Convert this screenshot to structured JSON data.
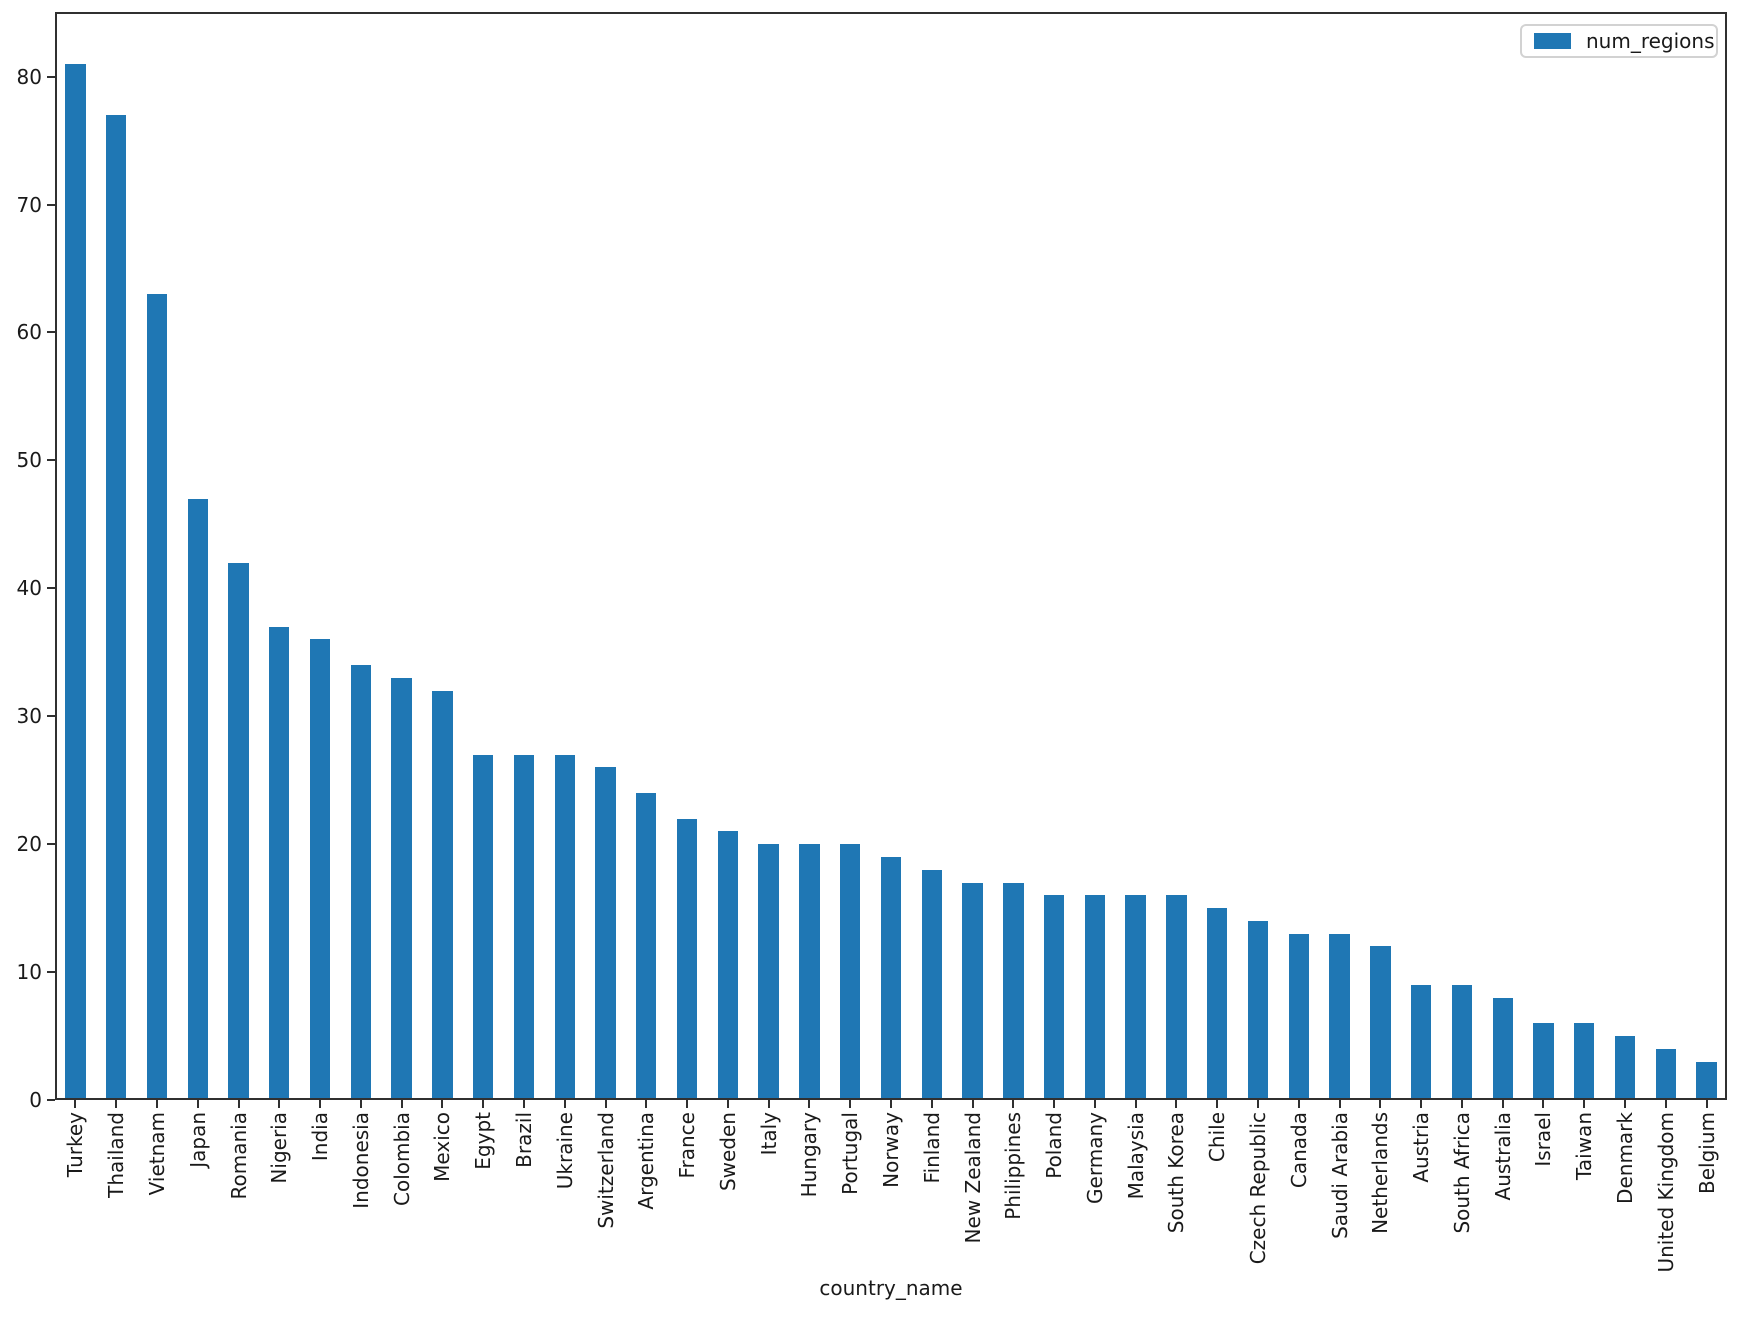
{
  "chart_data": {
    "type": "bar",
    "title": "",
    "xlabel": "country_name",
    "ylabel": "",
    "categories": [
      "Turkey",
      "Thailand",
      "Vietnam",
      "Japan",
      "Romania",
      "Nigeria",
      "India",
      "Indonesia",
      "Colombia",
      "Mexico",
      "Egypt",
      "Brazil",
      "Ukraine",
      "Switzerland",
      "Argentina",
      "France",
      "Sweden",
      "Italy",
      "Hungary",
      "Portugal",
      "Norway",
      "Finland",
      "New Zealand",
      "Philippines",
      "Poland",
      "Germany",
      "Malaysia",
      "South Korea",
      "Chile",
      "Czech Republic",
      "Canada",
      "Saudi Arabia",
      "Netherlands",
      "Austria",
      "South Africa",
      "Australia",
      "Israel",
      "Taiwan",
      "Denmark",
      "United Kingdom",
      "Belgium"
    ],
    "series": [
      {
        "name": "num_regions",
        "values": [
          81,
          77,
          63,
          47,
          42,
          37,
          36,
          34,
          33,
          32,
          27,
          27,
          27,
          26,
          24,
          22,
          21,
          20,
          20,
          20,
          19,
          18,
          17,
          17,
          16,
          16,
          16,
          16,
          15,
          14,
          13,
          13,
          12,
          9,
          9,
          8,
          6,
          6,
          5,
          4,
          3
        ]
      }
    ],
    "yticks": [
      0,
      10,
      20,
      30,
      40,
      50,
      60,
      70,
      80
    ],
    "ylim": [
      0,
      85.05
    ],
    "grid": false,
    "legend": {
      "position": "upper right",
      "entries": [
        "num_regions"
      ]
    },
    "bar_color": "#1f77b4",
    "text_color": "#1a1a1a",
    "spine_color": "#303030"
  }
}
